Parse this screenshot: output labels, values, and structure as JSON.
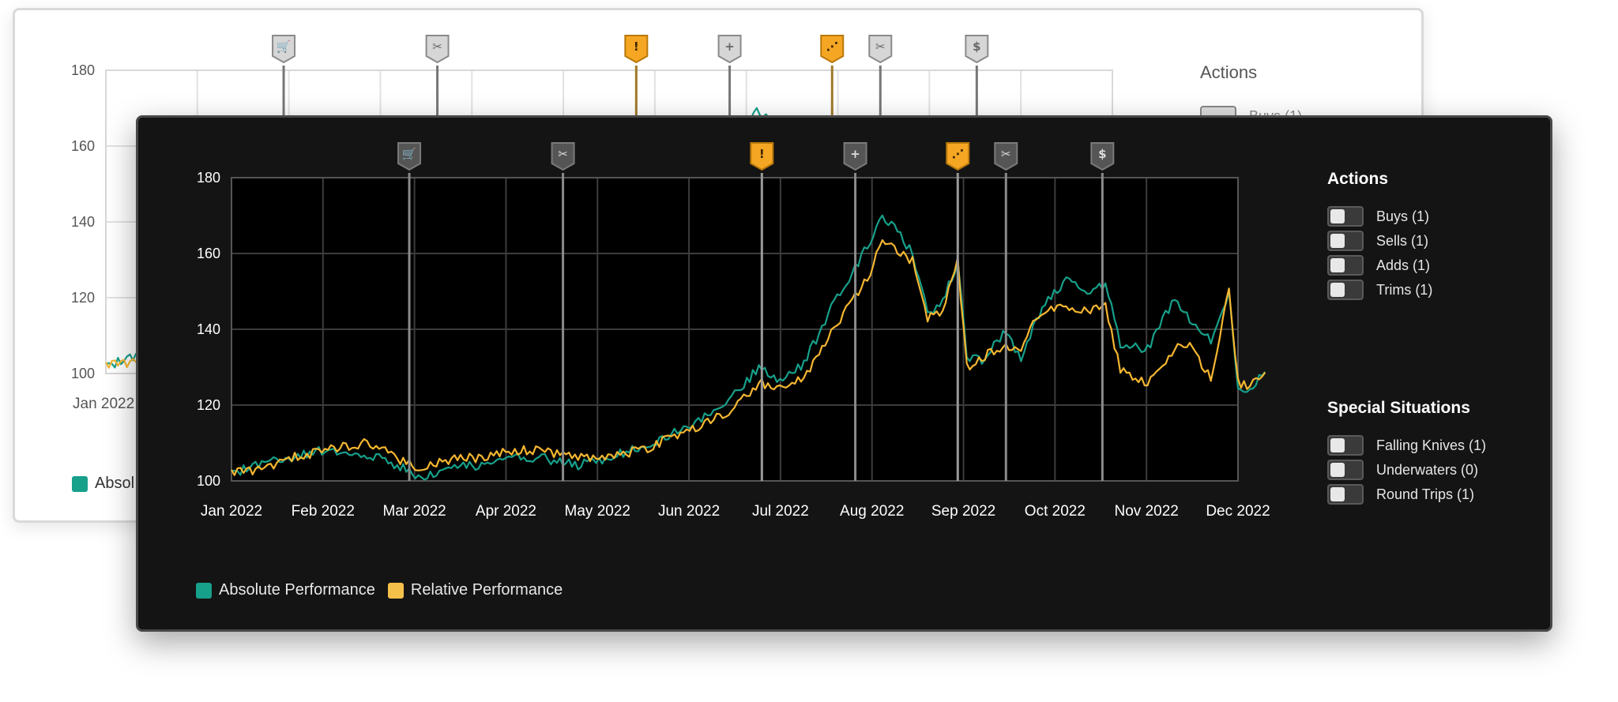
{
  "chart_data": {
    "type": "line",
    "x_labels": [
      "Jan 2022",
      "Feb 2022",
      "Mar 2022",
      "Apr 2022",
      "May 2022",
      "Jun 2022",
      "Jul 2022",
      "Aug 2022",
      "Sep 2022",
      "Oct 2022",
      "Nov 2022",
      "Dec 2022"
    ],
    "y_ticks": [
      100,
      120,
      140,
      160,
      180
    ],
    "ylim": [
      100,
      180
    ],
    "xlim": [
      "2022-01-01",
      "2022-12-01"
    ],
    "grid": true,
    "legend_position": "bottom-left",
    "series": [
      {
        "name": "Absolute Performance",
        "color": "#17a08a",
        "points": [
          [
            "2022-01-01",
            102
          ],
          [
            "2022-01-10",
            104
          ],
          [
            "2022-01-20",
            106
          ],
          [
            "2022-02-01",
            108
          ],
          [
            "2022-02-15",
            107
          ],
          [
            "2022-02-25",
            104
          ],
          [
            "2022-03-05",
            101
          ],
          [
            "2022-03-15",
            104
          ],
          [
            "2022-03-25",
            104
          ],
          [
            "2022-04-05",
            106
          ],
          [
            "2022-04-15",
            106
          ],
          [
            "2022-04-25",
            104
          ],
          [
            "2022-05-10",
            107
          ],
          [
            "2022-05-20",
            110
          ],
          [
            "2022-06-01",
            114
          ],
          [
            "2022-06-15",
            121
          ],
          [
            "2022-06-25",
            130
          ],
          [
            "2022-07-01",
            126
          ],
          [
            "2022-07-10",
            131
          ],
          [
            "2022-07-20",
            147
          ],
          [
            "2022-08-01",
            163
          ],
          [
            "2022-08-05",
            170
          ],
          [
            "2022-08-10",
            166
          ],
          [
            "2022-08-15",
            160
          ],
          [
            "2022-08-20",
            144
          ],
          [
            "2022-08-25",
            147
          ],
          [
            "2022-08-30",
            158
          ],
          [
            "2022-09-02",
            133
          ],
          [
            "2022-09-08",
            132
          ],
          [
            "2022-09-15",
            140
          ],
          [
            "2022-09-20",
            132
          ],
          [
            "2022-09-25",
            143
          ],
          [
            "2022-10-01",
            150
          ],
          [
            "2022-10-05",
            153
          ],
          [
            "2022-10-12",
            150
          ],
          [
            "2022-10-18",
            152
          ],
          [
            "2022-10-23",
            136
          ],
          [
            "2022-11-01",
            135
          ],
          [
            "2022-11-10",
            148
          ],
          [
            "2022-11-15",
            142
          ],
          [
            "2022-11-22",
            137
          ],
          [
            "2022-11-28",
            149
          ],
          [
            "2022-12-01",
            125
          ],
          [
            "2022-12-05",
            124
          ],
          [
            "2022-12-10",
            130
          ]
        ]
      },
      {
        "name": "Relative Performance",
        "color": "#f5b731",
        "points": [
          [
            "2022-01-01",
            102
          ],
          [
            "2022-01-10",
            103
          ],
          [
            "2022-01-20",
            106
          ],
          [
            "2022-02-01",
            108
          ],
          [
            "2022-02-15",
            110
          ],
          [
            "2022-02-25",
            106
          ],
          [
            "2022-03-05",
            103
          ],
          [
            "2022-03-15",
            106
          ],
          [
            "2022-03-25",
            106
          ],
          [
            "2022-04-05",
            108
          ],
          [
            "2022-04-15",
            108
          ],
          [
            "2022-04-25",
            106
          ],
          [
            "2022-05-10",
            107
          ],
          [
            "2022-05-20",
            109
          ],
          [
            "2022-06-01",
            113
          ],
          [
            "2022-06-15",
            118
          ],
          [
            "2022-06-25",
            126
          ],
          [
            "2022-07-01",
            124
          ],
          [
            "2022-07-10",
            127
          ],
          [
            "2022-07-20",
            140
          ],
          [
            "2022-08-01",
            155
          ],
          [
            "2022-08-05",
            164
          ],
          [
            "2022-08-10",
            160
          ],
          [
            "2022-08-15",
            158
          ],
          [
            "2022-08-20",
            143
          ],
          [
            "2022-08-25",
            145
          ],
          [
            "2022-08-30",
            158
          ],
          [
            "2022-09-02",
            130
          ],
          [
            "2022-09-08",
            133
          ],
          [
            "2022-09-15",
            136
          ],
          [
            "2022-09-20",
            134
          ],
          [
            "2022-09-25",
            143
          ],
          [
            "2022-10-01",
            146
          ],
          [
            "2022-10-05",
            145
          ],
          [
            "2022-10-12",
            145
          ],
          [
            "2022-10-18",
            146
          ],
          [
            "2022-10-23",
            129
          ],
          [
            "2022-11-01",
            126
          ],
          [
            "2022-11-10",
            135
          ],
          [
            "2022-11-15",
            136
          ],
          [
            "2022-11-22",
            127
          ],
          [
            "2022-11-28",
            150
          ],
          [
            "2022-12-01",
            126
          ],
          [
            "2022-12-05",
            125
          ],
          [
            "2022-12-10",
            128
          ]
        ]
      }
    ],
    "event_markers": [
      {
        "date": "2022-03-01",
        "icon": "cart-icon",
        "color": "#666666"
      },
      {
        "date": "2022-04-21",
        "icon": "scissors-icon",
        "color": "#666666"
      },
      {
        "date": "2022-06-26",
        "icon": "exclamation-icon",
        "color": "#f5a623"
      },
      {
        "date": "2022-07-27",
        "icon": "plus-icon",
        "color": "#666666"
      },
      {
        "date": "2022-08-30",
        "icon": "falling-knife-icon",
        "color": "#f5a623"
      },
      {
        "date": "2022-09-15",
        "icon": "scissors-icon",
        "color": "#666666"
      },
      {
        "date": "2022-10-17",
        "icon": "dollar-icon",
        "color": "#666666"
      }
    ]
  },
  "panel": {
    "actions_title": "Actions",
    "actions": [
      {
        "label": "Buys (1)"
      },
      {
        "label": "Sells (1)"
      },
      {
        "label": "Adds (1)"
      },
      {
        "label": "Trims (1)"
      }
    ],
    "special_title": "Special Situations",
    "special": [
      {
        "label": "Falling Knives (1)"
      },
      {
        "label": "Underwaters (0)"
      },
      {
        "label": "Round Trips (1)"
      }
    ]
  },
  "legend": {
    "absolute": {
      "label": "Absolute Performance",
      "color": "#17a08a"
    },
    "relative": {
      "label": "Relative Performance",
      "color": "#f5c04a"
    }
  },
  "back_card": {
    "actions_title": "Actions",
    "first_toggle_label": "Buys (1)",
    "x_first_label": "Jan 2022",
    "legend_fragment": "Absol"
  }
}
